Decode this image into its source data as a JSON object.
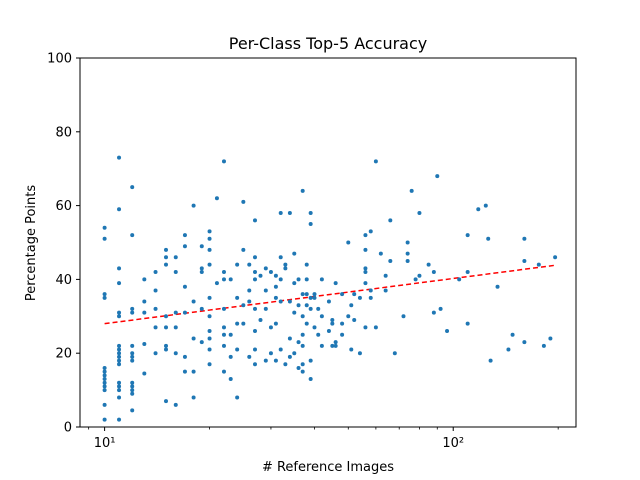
{
  "chart_data": {
    "type": "scatter",
    "title": "Per-Class Top-5 Accuracy",
    "xlabel": "# Reference Images",
    "ylabel": "Percentage Points",
    "x_scale": "log",
    "xlim": [
      8.5,
      225
    ],
    "ylim": [
      0,
      100
    ],
    "y_ticks": [
      0,
      20,
      40,
      60,
      80,
      100
    ],
    "x_major_ticks": [
      10,
      100
    ],
    "x_tick_labels": [
      "10¹",
      "10²"
    ],
    "x_minor_ticks": [
      9,
      20,
      30,
      40,
      50,
      60,
      70,
      80,
      90,
      200
    ],
    "grid": false,
    "point_color": "#1f77b4",
    "trend_color": "#ff0000",
    "trend_line": {
      "x": [
        10,
        195
      ],
      "y": [
        28,
        43.8
      ]
    },
    "points": [
      [
        10,
        2
      ],
      [
        10,
        6
      ],
      [
        10,
        10
      ],
      [
        10,
        11
      ],
      [
        10,
        12
      ],
      [
        10,
        13
      ],
      [
        10,
        14
      ],
      [
        10,
        15
      ],
      [
        10,
        16
      ],
      [
        10,
        35
      ],
      [
        10,
        36
      ],
      [
        10,
        51
      ],
      [
        10,
        54
      ],
      [
        11,
        2
      ],
      [
        11,
        8
      ],
      [
        11,
        10
      ],
      [
        11,
        11
      ],
      [
        11,
        12
      ],
      [
        11,
        17
      ],
      [
        11,
        18
      ],
      [
        11,
        19
      ],
      [
        11,
        20
      ],
      [
        11,
        21
      ],
      [
        11,
        22
      ],
      [
        11,
        30
      ],
      [
        11,
        31
      ],
      [
        11,
        39
      ],
      [
        11,
        43
      ],
      [
        11,
        59
      ],
      [
        11,
        73
      ],
      [
        12,
        4.5
      ],
      [
        12,
        9
      ],
      [
        12,
        10
      ],
      [
        12,
        11
      ],
      [
        12,
        12
      ],
      [
        12,
        18
      ],
      [
        12,
        19
      ],
      [
        12,
        20
      ],
      [
        12,
        22
      ],
      [
        12,
        31
      ],
      [
        12,
        32
      ],
      [
        12,
        52
      ],
      [
        12,
        65
      ],
      [
        13,
        14.5
      ],
      [
        13,
        22.5
      ],
      [
        13,
        31
      ],
      [
        13,
        34
      ],
      [
        13,
        40
      ],
      [
        14,
        20
      ],
      [
        14,
        27
      ],
      [
        14,
        32
      ],
      [
        14,
        37
      ],
      [
        14,
        42
      ],
      [
        15,
        7
      ],
      [
        15,
        21
      ],
      [
        15,
        22
      ],
      [
        15,
        27
      ],
      [
        15,
        30
      ],
      [
        15,
        44
      ],
      [
        15,
        46
      ],
      [
        15,
        48
      ],
      [
        16,
        6
      ],
      [
        16,
        20
      ],
      [
        16,
        27
      ],
      [
        16,
        31
      ],
      [
        16,
        42
      ],
      [
        16,
        46
      ],
      [
        17,
        15
      ],
      [
        17,
        19
      ],
      [
        17,
        31
      ],
      [
        17,
        38
      ],
      [
        17,
        49
      ],
      [
        17,
        52
      ],
      [
        18,
        8
      ],
      [
        18,
        15
      ],
      [
        18,
        24
      ],
      [
        18,
        34
      ],
      [
        18,
        60
      ],
      [
        19,
        23
      ],
      [
        19,
        32
      ],
      [
        19,
        42
      ],
      [
        19,
        43
      ],
      [
        19,
        49
      ],
      [
        20,
        17
      ],
      [
        20,
        21
      ],
      [
        20,
        24
      ],
      [
        20,
        26
      ],
      [
        20,
        30
      ],
      [
        20,
        35
      ],
      [
        20,
        44
      ],
      [
        20,
        48
      ],
      [
        20,
        51
      ],
      [
        20,
        53
      ],
      [
        21,
        39
      ],
      [
        21,
        62
      ],
      [
        22,
        15
      ],
      [
        22,
        22
      ],
      [
        22,
        25
      ],
      [
        22,
        27
      ],
      [
        22,
        32
      ],
      [
        22,
        40
      ],
      [
        22,
        42
      ],
      [
        22,
        72
      ],
      [
        23,
        13
      ],
      [
        23,
        19
      ],
      [
        23,
        25
      ],
      [
        23,
        40
      ],
      [
        24,
        8
      ],
      [
        24,
        21
      ],
      [
        24,
        28
      ],
      [
        24,
        35
      ],
      [
        24,
        44
      ],
      [
        25,
        28
      ],
      [
        25,
        33
      ],
      [
        25,
        48
      ],
      [
        25,
        61
      ],
      [
        26,
        19
      ],
      [
        26,
        34
      ],
      [
        26,
        37
      ],
      [
        26,
        44
      ],
      [
        27,
        17
      ],
      [
        27,
        21
      ],
      [
        27,
        26
      ],
      [
        27,
        32
      ],
      [
        27,
        40
      ],
      [
        27,
        42
      ],
      [
        27,
        46
      ],
      [
        27,
        56
      ],
      [
        28,
        29
      ],
      [
        28,
        41
      ],
      [
        29,
        18
      ],
      [
        29,
        32
      ],
      [
        29,
        37
      ],
      [
        29,
        43
      ],
      [
        30,
        20
      ],
      [
        30,
        27
      ],
      [
        30,
        42
      ],
      [
        31,
        18
      ],
      [
        31,
        28
      ],
      [
        31,
        35
      ],
      [
        31,
        38
      ],
      [
        31,
        41
      ],
      [
        32,
        21
      ],
      [
        32,
        34
      ],
      [
        32,
        40
      ],
      [
        32,
        46
      ],
      [
        32,
        58
      ],
      [
        33,
        17
      ],
      [
        33,
        43
      ],
      [
        33,
        44
      ],
      [
        34,
        19
      ],
      [
        34,
        24
      ],
      [
        34,
        34
      ],
      [
        34,
        58
      ],
      [
        35,
        20
      ],
      [
        35,
        31
      ],
      [
        35,
        39
      ],
      [
        35,
        47
      ],
      [
        36,
        16
      ],
      [
        36,
        23
      ],
      [
        36,
        33
      ],
      [
        36,
        40
      ],
      [
        37,
        15
      ],
      [
        37,
        17
      ],
      [
        37,
        22
      ],
      [
        37,
        25
      ],
      [
        37,
        30
      ],
      [
        37,
        36
      ],
      [
        37,
        64
      ],
      [
        38,
        28
      ],
      [
        38,
        33
      ],
      [
        38,
        36
      ],
      [
        38,
        40
      ],
      [
        38,
        44
      ],
      [
        39,
        13
      ],
      [
        39,
        18
      ],
      [
        39,
        32
      ],
      [
        39,
        35
      ],
      [
        39,
        55
      ],
      [
        39,
        58
      ],
      [
        40,
        27
      ],
      [
        40,
        35
      ],
      [
        40,
        36
      ],
      [
        41,
        25
      ],
      [
        41,
        32
      ],
      [
        42,
        22
      ],
      [
        42,
        30
      ],
      [
        42,
        40
      ],
      [
        44,
        26
      ],
      [
        44,
        34
      ],
      [
        45,
        22
      ],
      [
        45,
        28
      ],
      [
        45,
        29
      ],
      [
        46,
        22
      ],
      [
        46,
        23
      ],
      [
        46,
        39
      ],
      [
        48,
        25
      ],
      [
        48,
        28
      ],
      [
        48,
        36
      ],
      [
        50,
        30
      ],
      [
        50,
        50
      ],
      [
        51,
        21
      ],
      [
        51,
        33
      ],
      [
        52,
        29
      ],
      [
        52,
        36
      ],
      [
        54,
        20
      ],
      [
        54,
        35
      ],
      [
        56,
        27
      ],
      [
        56,
        39
      ],
      [
        56,
        42
      ],
      [
        56,
        43
      ],
      [
        56,
        48
      ],
      [
        56,
        52
      ],
      [
        58,
        35
      ],
      [
        58,
        37
      ],
      [
        58,
        53
      ],
      [
        60,
        27
      ],
      [
        60,
        72
      ],
      [
        62,
        47
      ],
      [
        64,
        37
      ],
      [
        64,
        41
      ],
      [
        66,
        45
      ],
      [
        66,
        56
      ],
      [
        68,
        20
      ],
      [
        72,
        30
      ],
      [
        74,
        45
      ],
      [
        74,
        47
      ],
      [
        74,
        50
      ],
      [
        76,
        64
      ],
      [
        78,
        40
      ],
      [
        80,
        41
      ],
      [
        80,
        58
      ],
      [
        85,
        44
      ],
      [
        88,
        31
      ],
      [
        88,
        42
      ],
      [
        90,
        68
      ],
      [
        92,
        32
      ],
      [
        96,
        26
      ],
      [
        104,
        40
      ],
      [
        110,
        28
      ],
      [
        110,
        42
      ],
      [
        110,
        52
      ],
      [
        118,
        59
      ],
      [
        124,
        60
      ],
      [
        126,
        51
      ],
      [
        128,
        18
      ],
      [
        134,
        38
      ],
      [
        144,
        21
      ],
      [
        148,
        25
      ],
      [
        160,
        23
      ],
      [
        160,
        45
      ],
      [
        160,
        51
      ],
      [
        176,
        44
      ],
      [
        182,
        22
      ],
      [
        190,
        24
      ],
      [
        196,
        46
      ]
    ]
  }
}
